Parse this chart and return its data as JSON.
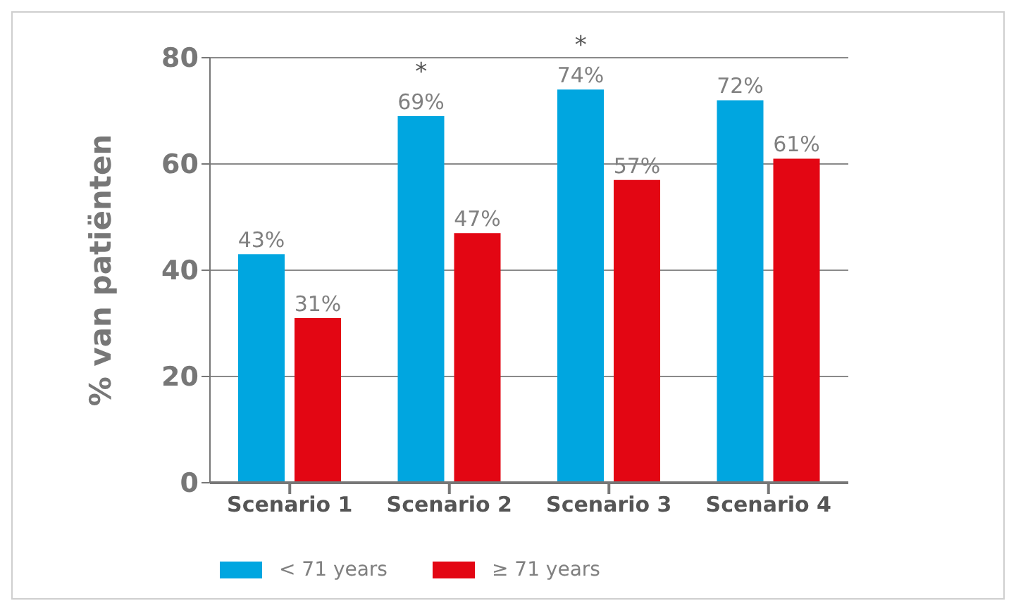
{
  "chart_data": {
    "type": "bar",
    "ylabel": "% van patiënten",
    "categories": [
      "Scenario 1",
      "Scenario 2",
      "Scenario 3",
      "Scenario 4"
    ],
    "series": [
      {
        "name": "< 71 years",
        "color": "#00a6e0",
        "values": [
          43,
          69,
          74,
          72
        ],
        "value_labels": [
          "43%",
          "69%",
          "74%",
          "72%"
        ]
      },
      {
        "name": "≥ 71 years",
        "color": "#e30613",
        "values": [
          31,
          47,
          57,
          61
        ],
        "value_labels": [
          "31%",
          "47%",
          "57%",
          "61%"
        ]
      }
    ],
    "ylim": [
      0,
      80
    ],
    "yticks": [
      0,
      20,
      40,
      60,
      80
    ],
    "grid": "y",
    "legend": "bottom left",
    "annotations": [
      {
        "text": "*",
        "x": "Scenario 2",
        "y": 69
      },
      {
        "text": "*",
        "x": "Scenario 3",
        "y": 74
      }
    ]
  }
}
